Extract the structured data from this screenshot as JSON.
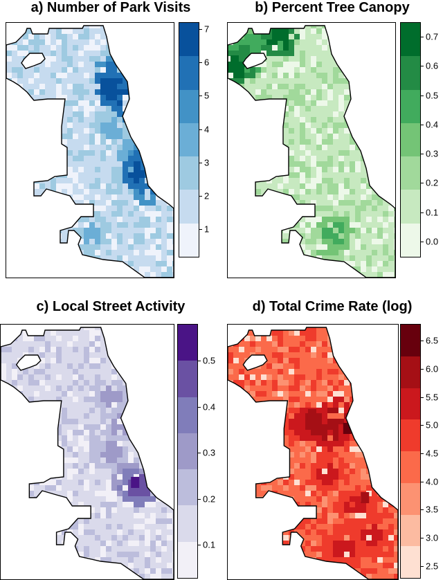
{
  "figure": {
    "panels": [
      {
        "id": "a",
        "title": "a) Number of Park Visits",
        "palette": [
          "#eff3fb",
          "#c6dbef",
          "#9ecae1",
          "#6baed6",
          "#4292c6",
          "#2171b5",
          "#08519c"
        ],
        "ticks": [
          "1",
          "2",
          "3",
          "4",
          "5",
          "6",
          "7"
        ],
        "range": [
          0.2,
          7.2
        ]
      },
      {
        "id": "b",
        "title": "b) Percent Tree Canopy",
        "palette": [
          "#edf8e9",
          "#c7e9c0",
          "#a1d99b",
          "#74c476",
          "#41ab5d",
          "#238b45",
          "#006d2c"
        ],
        "ticks": [
          "0.0",
          "0.1",
          "0.2",
          "0.3",
          "0.4",
          "0.5",
          "0.6",
          "0.7"
        ],
        "range": [
          -0.05,
          0.75
        ]
      },
      {
        "id": "c",
        "title": "c) Local Street Activity",
        "palette": [
          "#f2f0f7",
          "#dadaeb",
          "#bcbddc",
          "#9e9ac8",
          "#807dba",
          "#6a51a3",
          "#4a1486"
        ],
        "ticks": [
          "0.1",
          "0.2",
          "0.3",
          "0.4",
          "0.5"
        ],
        "range": [
          0.03,
          0.58
        ]
      },
      {
        "id": "d",
        "title": "d) Total Crime Rate (log)",
        "palette": [
          "#fee0d2",
          "#fcbba1",
          "#fc9272",
          "#fb6a4a",
          "#ef3b2c",
          "#cb181d",
          "#a50f15",
          "#67000d"
        ],
        "ticks": [
          "2.5",
          "3.0",
          "3.5",
          "4.0",
          "4.5",
          "5.0",
          "5.5",
          "6.0",
          "6.5"
        ],
        "range": [
          2.3,
          6.8
        ]
      }
    ]
  }
}
